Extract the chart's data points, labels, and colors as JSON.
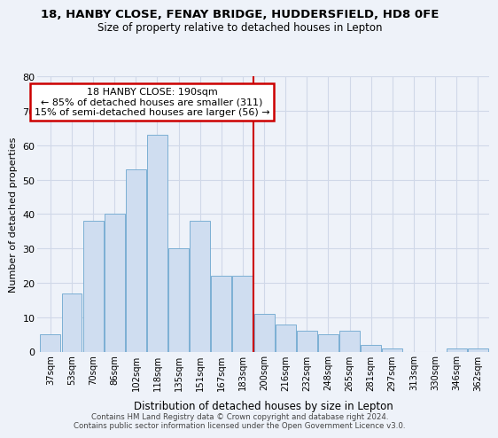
{
  "title1": "18, HANBY CLOSE, FENAY BRIDGE, HUDDERSFIELD, HD8 0FE",
  "title2": "Size of property relative to detached houses in Lepton",
  "xlabel": "Distribution of detached houses by size in Lepton",
  "ylabel": "Number of detached properties",
  "categories": [
    "37sqm",
    "53sqm",
    "70sqm",
    "86sqm",
    "102sqm",
    "118sqm",
    "135sqm",
    "151sqm",
    "167sqm",
    "183sqm",
    "200sqm",
    "216sqm",
    "232sqm",
    "248sqm",
    "265sqm",
    "281sqm",
    "297sqm",
    "313sqm",
    "330sqm",
    "346sqm",
    "362sqm"
  ],
  "values": [
    5,
    17,
    38,
    40,
    53,
    63,
    30,
    38,
    22,
    22,
    11,
    8,
    6,
    5,
    6,
    2,
    1,
    0,
    0,
    1,
    1
  ],
  "bar_color": "#cfddf0",
  "bar_edge_color": "#7bafd4",
  "property_line_x": 9.5,
  "annotation_title": "18 HANBY CLOSE: 190sqm",
  "annotation_line1": "← 85% of detached houses are smaller (311)",
  "annotation_line2": "15% of semi-detached houses are larger (56) →",
  "annotation_box_color": "#ffffff",
  "annotation_box_edge": "#cc0000",
  "property_line_color": "#cc0000",
  "ylim": [
    0,
    80
  ],
  "yticks": [
    0,
    10,
    20,
    30,
    40,
    50,
    60,
    70,
    80
  ],
  "footer1": "Contains HM Land Registry data © Crown copyright and database right 2024.",
  "footer2": "Contains public sector information licensed under the Open Government Licence v3.0.",
  "bg_color": "#eef2f9",
  "grid_color": "#d0d8e8"
}
